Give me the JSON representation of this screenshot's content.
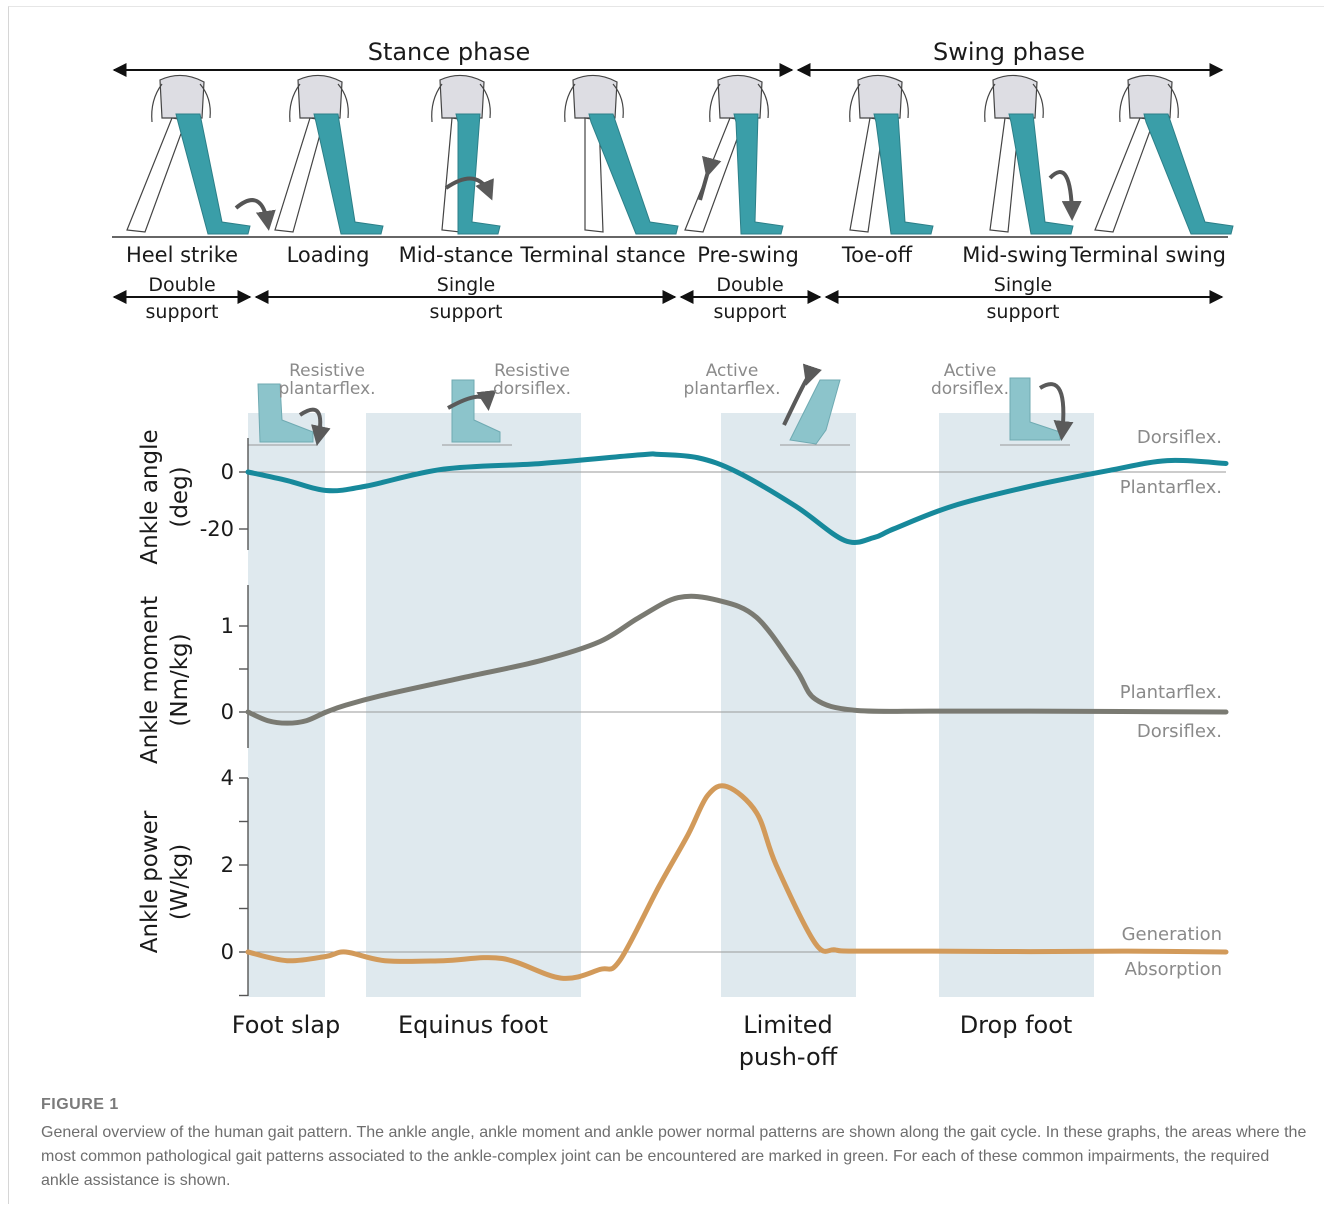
{
  "figure": {
    "phases": [
      {
        "name": "Stance phase"
      },
      {
        "name": "Swing phase"
      }
    ],
    "events": [
      "Heel strike",
      "Loading",
      "Mid-stance",
      "Terminal stance",
      "Pre-swing",
      "Toe-off",
      "Mid-swing",
      "Terminal swing"
    ],
    "support": [
      {
        "line1": "Double",
        "line2": "support"
      },
      {
        "line1": "Single",
        "line2": "support"
      },
      {
        "line1": "Double",
        "line2": "support"
      },
      {
        "line1": "Single",
        "line2": "support"
      }
    ],
    "assist_labels": [
      {
        "line1": "Resistive",
        "line2": "plantarflex."
      },
      {
        "line1": "Resistive",
        "line2": "dorsiflex."
      },
      {
        "line1": "Active",
        "line2": "plantarflex."
      },
      {
        "line1": "Active",
        "line2": "dorsiflex."
      }
    ],
    "impairments": [
      {
        "line1": "Foot slap",
        "line2": ""
      },
      {
        "line1": "Equinus foot",
        "line2": ""
      },
      {
        "line1": "Limited",
        "line2": "push-off"
      },
      {
        "line1": "Drop foot",
        "line2": ""
      }
    ],
    "colors": {
      "leg": "#3a9ea8",
      "angle": "#17899b",
      "moment": "#7a7a72",
      "power": "#d29a5a",
      "band": "#dfe9ee",
      "foot_icon": "#8cc4cb",
      "rotation_arrow": "#5a5a5a"
    }
  },
  "chart_data": [
    {
      "type": "line",
      "ylabel": "Ankle angle",
      "yunit": "(deg)",
      "yticks": [
        0,
        -20
      ],
      "upper_note": "Dorsiflex.",
      "lower_note": "Plantarflex.",
      "x": [
        0,
        4,
        8,
        12,
        20,
        30,
        40,
        42,
        46,
        50,
        56,
        61,
        64,
        66,
        72,
        80,
        88,
        94,
        100
      ],
      "y": [
        0,
        -3,
        -6.5,
        -5,
        1,
        3,
        6,
        6.2,
        5,
        0,
        -12,
        -24,
        -23,
        -20,
        -12,
        -5,
        0.5,
        4,
        3
      ]
    },
    {
      "type": "line",
      "ylabel": "Ankle moment",
      "yunit": "(Nm/kg)",
      "yticks": [
        1,
        0
      ],
      "upper_note": "Plantarflex.",
      "lower_note": "Dorsiflex.",
      "x": [
        0,
        2,
        4,
        6,
        8,
        10,
        14,
        22,
        30,
        36,
        40,
        44,
        48,
        52,
        56,
        58,
        62,
        70,
        80,
        100
      ],
      "y": [
        0,
        -0.1,
        -0.13,
        -0.1,
        0,
        0.08,
        0.2,
        0.4,
        0.6,
        0.82,
        1.1,
        1.33,
        1.3,
        1.1,
        0.5,
        0.15,
        0.02,
        0.01,
        0.01,
        0
      ]
    },
    {
      "type": "line",
      "ylabel": "Ankle power",
      "yunit": "(W/kg)",
      "yticks": [
        4,
        2,
        0
      ],
      "upper_note": "Generation",
      "lower_note": "Absorption",
      "x": [
        0,
        4,
        8,
        10,
        14,
        20,
        26,
        32,
        36,
        38,
        42,
        45,
        47,
        49,
        52,
        54,
        58,
        60,
        62,
        70,
        80,
        90,
        100
      ],
      "y": [
        0,
        -0.2,
        -0.1,
        0,
        -0.2,
        -0.2,
        -0.15,
        -0.6,
        -0.4,
        -0.2,
        1.5,
        2.7,
        3.6,
        3.8,
        3.2,
        2.0,
        0.2,
        0.05,
        0.02,
        0.02,
        0.01,
        0.02,
        0
      ]
    }
  ],
  "caption": {
    "title": "FIGURE 1",
    "text": "General overview of the human gait pattern. The ankle angle, ankle moment and ankle power normal patterns are shown along the gait cycle. In these graphs, the areas where the most common pathological gait patterns associated to the ankle-complex joint can be encountered are marked in green. For each of these common impairments, the required ankle assistance is shown."
  }
}
